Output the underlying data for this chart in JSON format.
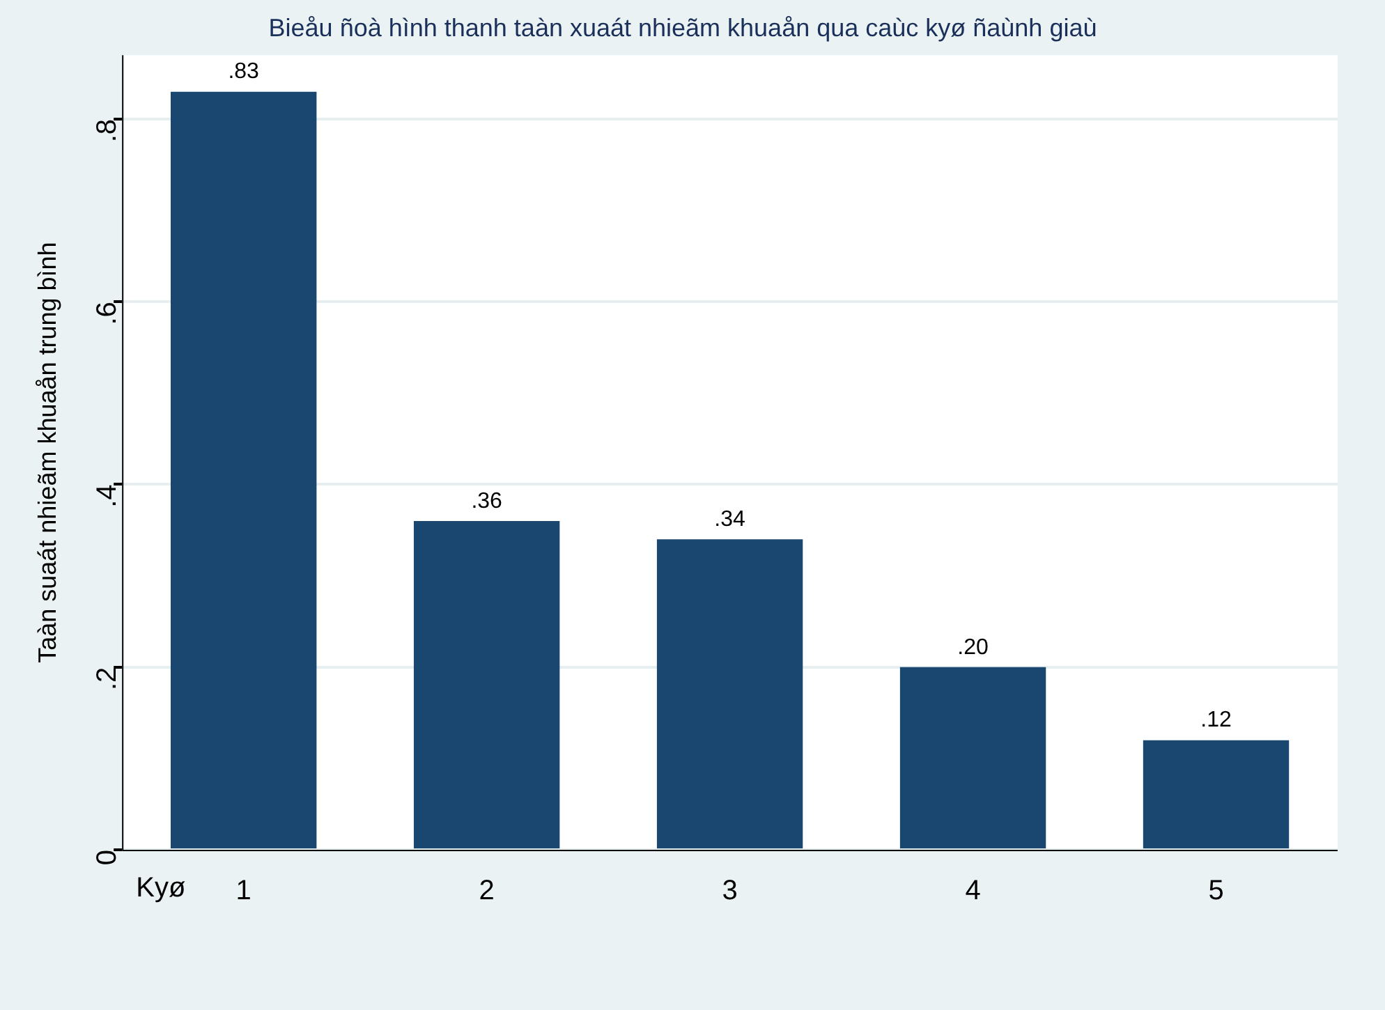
{
  "chart_data": {
    "type": "bar",
    "title": "Bieåu ñoà hình thanh taàn xuaát nhieãm khuaån qua caùc kyø ñaùnh giaù",
    "ylabel": "Taàn suaát nhieãm khuaån trung bình",
    "xlabel": "Kyø",
    "categories": [
      "1",
      "2",
      "3",
      "4",
      "5"
    ],
    "values": [
      0.83,
      0.36,
      0.34,
      0.2,
      0.12
    ],
    "value_labels": [
      ".83",
      ".36",
      ".34",
      ".20",
      ".12"
    ],
    "color": "#1a476f",
    "ylim": [
      0,
      0.87
    ],
    "yticks": [
      {
        "value": 0,
        "label": "0"
      },
      {
        "value": 0.2,
        "label": ".2"
      },
      {
        "value": 0.4,
        "label": ".4"
      },
      {
        "value": 0.6,
        "label": ".6"
      },
      {
        "value": 0.8,
        "label": ".8"
      }
    ],
    "grid": "y",
    "legend": false
  }
}
